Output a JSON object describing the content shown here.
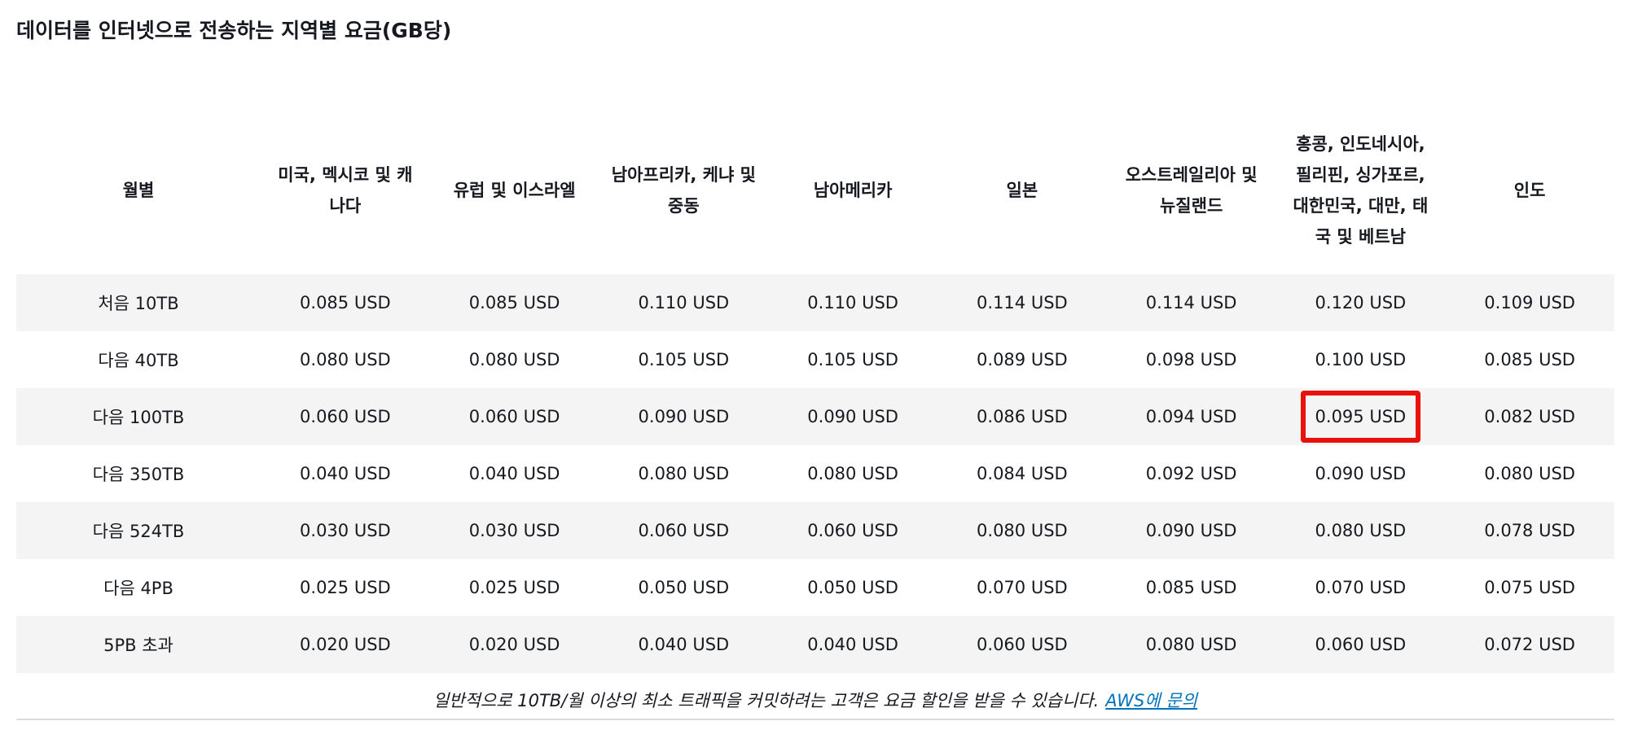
{
  "title": "데이터를 인터넷으로 전송하는 지역별 요금(GB당)",
  "table": {
    "headers": [
      "월별",
      "미국, 멕시코 및 캐나다",
      "유럽 및 이스라엘",
      "남아프리카, 케냐 및 중동",
      "남아메리카",
      "일본",
      "오스트레일리아 및 뉴질랜드",
      "홍콩, 인도네시아, 필리핀, 싱가포르, 대한민국, 대만, 태국 및 베트남",
      "인도"
    ],
    "rows": [
      {
        "tier": "처음 10TB",
        "values": [
          "0.085 USD",
          "0.085 USD",
          "0.110 USD",
          "0.110 USD",
          "0.114 USD",
          "0.114 USD",
          "0.120 USD",
          "0.109 USD"
        ]
      },
      {
        "tier": "다음 40TB",
        "values": [
          "0.080 USD",
          "0.080 USD",
          "0.105 USD",
          "0.105 USD",
          "0.089 USD",
          "0.098 USD",
          "0.100 USD",
          "0.085 USD"
        ]
      },
      {
        "tier": "다음 100TB",
        "values": [
          "0.060 USD",
          "0.060 USD",
          "0.090 USD",
          "0.090 USD",
          "0.086 USD",
          "0.094 USD",
          "0.095 USD",
          "0.082 USD"
        ]
      },
      {
        "tier": "다음 350TB",
        "values": [
          "0.040 USD",
          "0.040 USD",
          "0.080 USD",
          "0.080 USD",
          "0.084 USD",
          "0.092 USD",
          "0.090 USD",
          "0.080 USD"
        ]
      },
      {
        "tier": "다음 524TB",
        "values": [
          "0.030 USD",
          "0.030 USD",
          "0.060 USD",
          "0.060 USD",
          "0.080 USD",
          "0.090 USD",
          "0.080 USD",
          "0.078 USD"
        ]
      },
      {
        "tier": "다음 4PB",
        "values": [
          "0.025 USD",
          "0.025 USD",
          "0.050 USD",
          "0.050 USD",
          "0.070 USD",
          "0.085 USD",
          "0.070 USD",
          "0.075 USD"
        ]
      },
      {
        "tier": "5PB 초과",
        "values": [
          "0.020 USD",
          "0.020 USD",
          "0.040 USD",
          "0.040 USD",
          "0.060 USD",
          "0.080 USD",
          "0.060 USD",
          "0.072 USD"
        ]
      }
    ],
    "highlight": {
      "row": 2,
      "col": 6,
      "color": "#e8120c"
    }
  },
  "footnote": {
    "text": "일반적으로 10TB/월 이상의 최소 트래픽을 커밋하려는 고객은 요금 할인을 받을 수 있습니다.",
    "link_label": "AWS에 문의"
  },
  "colors": {
    "row_shade": "#f4f4f4",
    "link": "#0073bb",
    "highlight_border": "#e8120c"
  }
}
